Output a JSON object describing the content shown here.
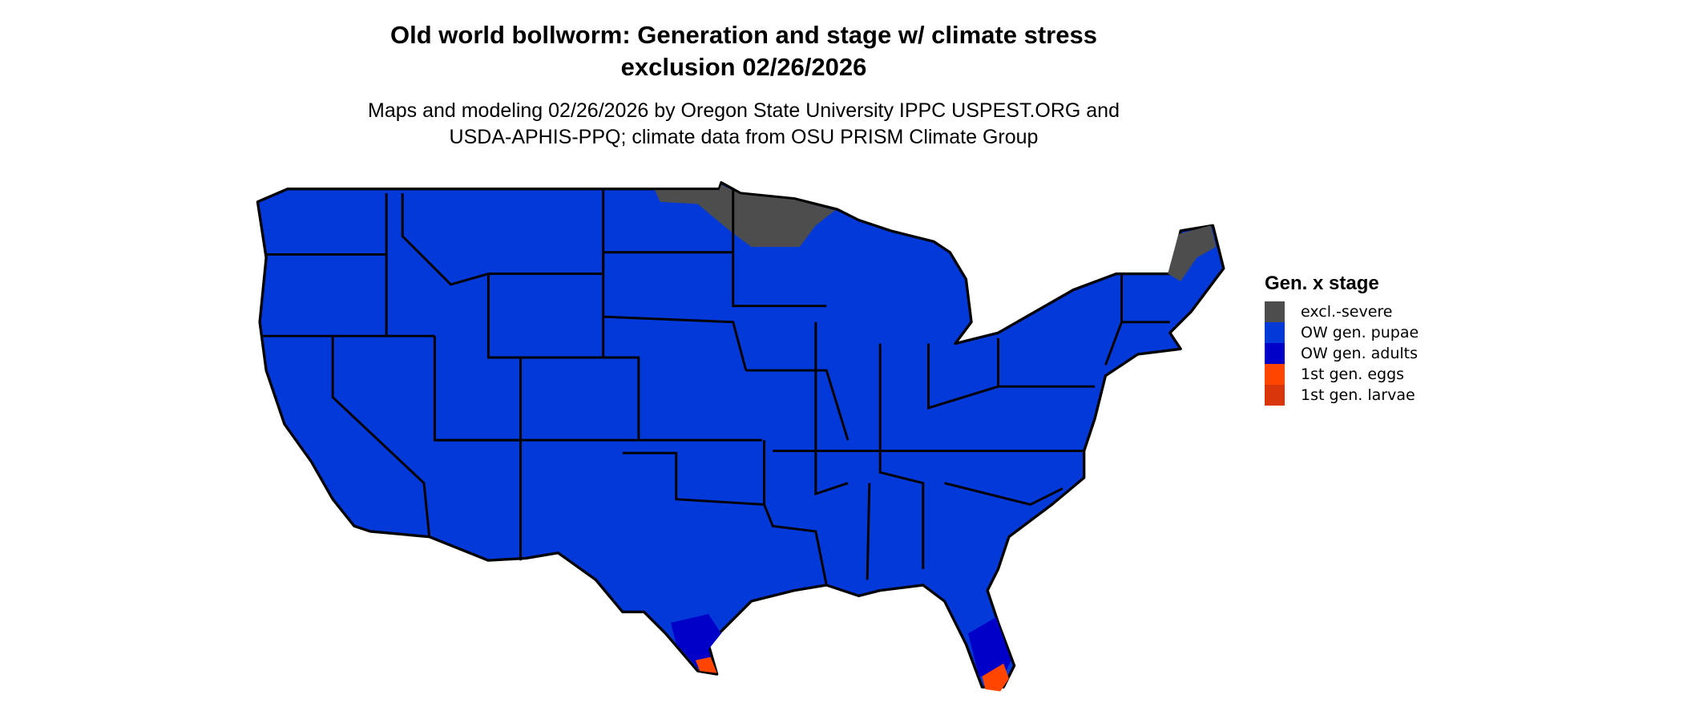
{
  "title": {
    "line1": "Old world bollworm: Generation and stage w/ climate stress",
    "line2": "exclusion 02/26/2026"
  },
  "subtitle": {
    "line1": "Maps and modeling 02/26/2026 by Oregon State University IPPC USPEST.ORG and",
    "line2": "USDA-APHIS-PPQ; climate data from OSU PRISM Climate Group"
  },
  "legend": {
    "title": "Gen. x stage",
    "items": [
      {
        "label": "excl.-severe",
        "color": "#4d4d4d"
      },
      {
        "label": "OW gen. pupae",
        "color": "#0339d9"
      },
      {
        "label": "OW gen. adults",
        "color": "#0000c8"
      },
      {
        "label": "1st gen. eggs",
        "color": "#ff4500"
      },
      {
        "label": "1st gen. larvae",
        "color": "#d9360b"
      }
    ]
  },
  "map": {
    "region": "Contiguous United States",
    "state_border_color": "#000000"
  }
}
